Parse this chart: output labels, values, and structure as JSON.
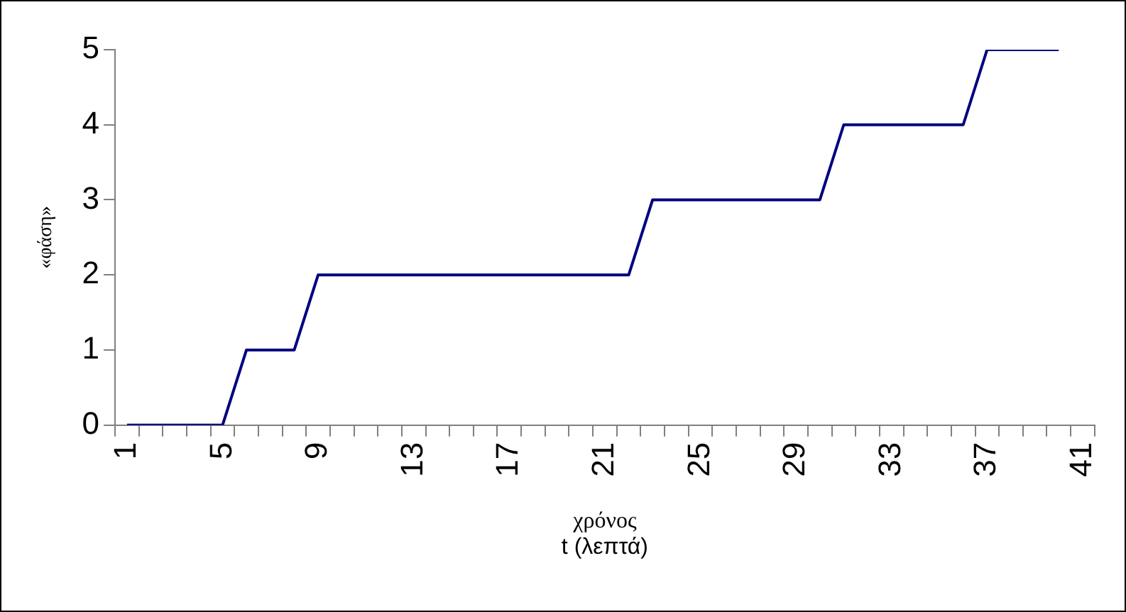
{
  "chart_data": {
    "type": "line",
    "ylabel": "«φάση»",
    "xlabel": "χρόνος",
    "annotations": [
      "t (λεπτά)"
    ],
    "categories": [
      "1",
      null,
      null,
      null,
      "5",
      null,
      null,
      null,
      "9",
      null,
      null,
      null,
      "13",
      null,
      null,
      null,
      "17",
      null,
      null,
      null,
      "21",
      null,
      null,
      null,
      "25",
      null,
      null,
      null,
      "29",
      null,
      null,
      null,
      "33",
      null,
      null,
      null,
      "37",
      null,
      null,
      null,
      "41"
    ],
    "series": [
      {
        "color": "#000080",
        "values": [
          0,
          0,
          0,
          0,
          0,
          1,
          1,
          1,
          2,
          2,
          2,
          2,
          2,
          2,
          2,
          2,
          2,
          2,
          2,
          2,
          2,
          2,
          3,
          3,
          3,
          3,
          3,
          3,
          3,
          3,
          4,
          4,
          4,
          4,
          4,
          4,
          5,
          5,
          5,
          5,
          null
        ]
      }
    ],
    "ylim": [
      0,
      5
    ],
    "yticks": [
      0,
      1,
      2,
      3,
      4,
      5
    ],
    "grid": false,
    "legend": false,
    "marker": "none",
    "line_style": "solid"
  }
}
